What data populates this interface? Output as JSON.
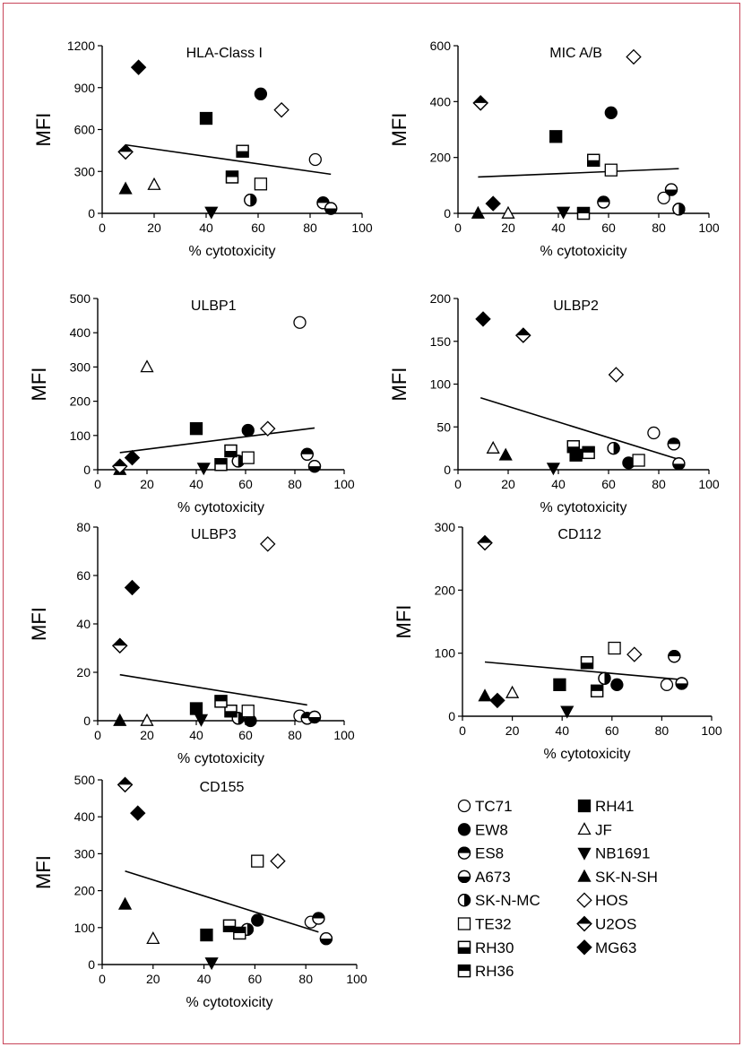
{
  "legend": [
    {
      "name": "TC71",
      "marker": "circle",
      "fill": "open"
    },
    {
      "name": "EW8",
      "marker": "circle",
      "fill": "full"
    },
    {
      "name": "ES8",
      "marker": "circle",
      "fill": "top"
    },
    {
      "name": "A673",
      "marker": "circle",
      "fill": "bottom"
    },
    {
      "name": "SK-N-MC",
      "marker": "circle",
      "fill": "right"
    },
    {
      "name": "TE32",
      "marker": "square",
      "fill": "open"
    },
    {
      "name": "RH30",
      "marker": "square",
      "fill": "bottom"
    },
    {
      "name": "RH36",
      "marker": "square",
      "fill": "top"
    },
    {
      "name": "RH41",
      "marker": "square",
      "fill": "full"
    },
    {
      "name": "JF",
      "marker": "triangle",
      "fill": "open"
    },
    {
      "name": "NB1691",
      "marker": "triangle-down",
      "fill": "full"
    },
    {
      "name": "SK-N-SH",
      "marker": "triangle",
      "fill": "full"
    },
    {
      "name": "HOS",
      "marker": "diamond",
      "fill": "open"
    },
    {
      "name": "U2OS",
      "marker": "diamond",
      "fill": "top"
    },
    {
      "name": "MG63",
      "marker": "diamond",
      "fill": "full"
    }
  ],
  "chart_data": [
    {
      "type": "scatter",
      "title": "HLA-Class I",
      "xlabel": "% cytotoxicity",
      "ylabel": "MFI",
      "xlim": [
        0,
        100
      ],
      "ylim": [
        0,
        1200
      ],
      "xticks": [
        "0",
        "20",
        "40",
        "60",
        "80",
        "100"
      ],
      "yticks": [
        "0",
        "300",
        "600",
        "900",
        "1200"
      ],
      "trendline": [
        [
          9,
          490
        ],
        [
          88,
          280
        ]
      ],
      "points": [
        {
          "series": "TC71",
          "x": 82,
          "y": 385
        },
        {
          "series": "EW8",
          "x": 61,
          "y": 855
        },
        {
          "series": "ES8",
          "x": 85,
          "y": 75
        },
        {
          "series": "A673",
          "x": 88,
          "y": 35
        },
        {
          "series": "SK-N-MC",
          "x": 57,
          "y": 95
        },
        {
          "series": "TE32",
          "x": 61,
          "y": 210
        },
        {
          "series": "RH30",
          "x": 54,
          "y": 445
        },
        {
          "series": "RH36",
          "x": 50,
          "y": 260
        },
        {
          "series": "RH41",
          "x": 40,
          "y": 680
        },
        {
          "series": "JF",
          "x": 20,
          "y": 205
        },
        {
          "series": "NB1691",
          "x": 42,
          "y": 10
        },
        {
          "series": "SK-N-SH",
          "x": 9,
          "y": 175
        },
        {
          "series": "HOS",
          "x": 69,
          "y": 740
        },
        {
          "series": "U2OS",
          "x": 9,
          "y": 440
        },
        {
          "series": "MG63",
          "x": 14,
          "y": 1045
        }
      ]
    },
    {
      "type": "scatter",
      "title": "MIC A/B",
      "xlabel": "% cytotoxicity",
      "ylabel": "MFI",
      "xlim": [
        0,
        100
      ],
      "ylim": [
        0,
        600
      ],
      "xticks": [
        "0",
        "20",
        "40",
        "60",
        "80",
        "100"
      ],
      "yticks": [
        "0",
        "200",
        "400",
        "600"
      ],
      "trendline": [
        [
          8,
          130
        ],
        [
          88,
          160
        ]
      ],
      "points": [
        {
          "series": "TC71",
          "x": 82,
          "y": 55
        },
        {
          "series": "EW8",
          "x": 61,
          "y": 360
        },
        {
          "series": "ES8",
          "x": 58,
          "y": 40
        },
        {
          "series": "A673",
          "x": 85,
          "y": 85
        },
        {
          "series": "SK-N-MC",
          "x": 88,
          "y": 15
        },
        {
          "series": "TE32",
          "x": 61,
          "y": 155
        },
        {
          "series": "RH30",
          "x": 54,
          "y": 190
        },
        {
          "series": "RH36",
          "x": 50,
          "y": 0
        },
        {
          "series": "RH41",
          "x": 39,
          "y": 275
        },
        {
          "series": "JF",
          "x": 20,
          "y": 0
        },
        {
          "series": "NB1691",
          "x": 42,
          "y": 5
        },
        {
          "series": "SK-N-SH",
          "x": 8,
          "y": 0
        },
        {
          "series": "HOS",
          "x": 70,
          "y": 560
        },
        {
          "series": "U2OS",
          "x": 9,
          "y": 395
        },
        {
          "series": "MG63",
          "x": 14,
          "y": 35
        }
      ]
    },
    {
      "type": "scatter",
      "title": "ULBP1",
      "xlabel": "% cytotoxicity",
      "ylabel": "MFI",
      "xlim": [
        0,
        100
      ],
      "ylim": [
        0,
        500
      ],
      "xticks": [
        "0",
        "20",
        "40",
        "60",
        "80",
        "100"
      ],
      "yticks": [
        "0",
        "100",
        "200",
        "300",
        "400",
        "500"
      ],
      "trendline": [
        [
          9,
          50
        ],
        [
          88,
          122
        ]
      ],
      "points": [
        {
          "series": "TC71",
          "x": 82,
          "y": 430
        },
        {
          "series": "EW8",
          "x": 61,
          "y": 115
        },
        {
          "series": "ES8",
          "x": 85,
          "y": 45
        },
        {
          "series": "A673",
          "x": 88,
          "y": 10
        },
        {
          "series": "SK-N-MC",
          "x": 57,
          "y": 25
        },
        {
          "series": "TE32",
          "x": 61,
          "y": 35
        },
        {
          "series": "RH30",
          "x": 54,
          "y": 55
        },
        {
          "series": "RH36",
          "x": 50,
          "y": 15
        },
        {
          "series": "RH41",
          "x": 40,
          "y": 120
        },
        {
          "series": "JF",
          "x": 20,
          "y": 300
        },
        {
          "series": "NB1691",
          "x": 43,
          "y": 5
        },
        {
          "series": "SK-N-SH",
          "x": 9,
          "y": 0
        },
        {
          "series": "HOS",
          "x": 69,
          "y": 120
        },
        {
          "series": "U2OS",
          "x": 9,
          "y": 10
        },
        {
          "series": "MG63",
          "x": 14,
          "y": 35
        }
      ]
    },
    {
      "type": "scatter",
      "title": "ULBP2",
      "xlabel": "% cytotoxicity",
      "ylabel": "MFI",
      "xlim": [
        0,
        100
      ],
      "ylim": [
        0,
        200
      ],
      "xticks": [
        "0",
        "20",
        "40",
        "60",
        "80",
        "100"
      ],
      "yticks": [
        "0",
        "50",
        "100",
        "150",
        "200"
      ],
      "trendline": [
        [
          9,
          84
        ],
        [
          88,
          12
        ]
      ],
      "points": [
        {
          "series": "TC71",
          "x": 78,
          "y": 43
        },
        {
          "series": "EW8",
          "x": 68,
          "y": 8
        },
        {
          "series": "ES8",
          "x": 86,
          "y": 30
        },
        {
          "series": "A673",
          "x": 88,
          "y": 7
        },
        {
          "series": "SK-N-MC",
          "x": 62,
          "y": 25
        },
        {
          "series": "TE32",
          "x": 72,
          "y": 11
        },
        {
          "series": "RH30",
          "x": 46,
          "y": 27
        },
        {
          "series": "RH36",
          "x": 52,
          "y": 20
        },
        {
          "series": "RH41",
          "x": 47,
          "y": 17
        },
        {
          "series": "JF",
          "x": 14,
          "y": 25
        },
        {
          "series": "NB1691",
          "x": 38,
          "y": 2
        },
        {
          "series": "SK-N-SH",
          "x": 19,
          "y": 17
        },
        {
          "series": "HOS",
          "x": 63,
          "y": 111
        },
        {
          "series": "U2OS",
          "x": 26,
          "y": 157
        },
        {
          "series": "MG63",
          "x": 10,
          "y": 176
        }
      ]
    },
    {
      "type": "scatter",
      "title": "ULBP3",
      "xlabel": "% cytotoxicity",
      "ylabel": "MFI",
      "xlim": [
        0,
        100
      ],
      "ylim": [
        0,
        80
      ],
      "xticks": [
        "0",
        "20",
        "40",
        "60",
        "80",
        "100"
      ],
      "yticks": [
        "0",
        "20",
        "40",
        "60",
        "80"
      ],
      "trendline": [
        [
          9,
          19
        ],
        [
          85,
          6.5
        ]
      ],
      "points": [
        {
          "series": "TC71",
          "x": 82,
          "y": 2
        },
        {
          "series": "EW8",
          "x": 62,
          "y": 0
        },
        {
          "series": "ES8",
          "x": 85,
          "y": 1
        },
        {
          "series": "A673",
          "x": 88,
          "y": 1.5
        },
        {
          "series": "SK-N-MC",
          "x": 57,
          "y": 1
        },
        {
          "series": "TE32",
          "x": 61,
          "y": 4
        },
        {
          "series": "RH30",
          "x": 54,
          "y": 4
        },
        {
          "series": "RH36",
          "x": 50,
          "y": 8
        },
        {
          "series": "RH41",
          "x": 40,
          "y": 5
        },
        {
          "series": "JF",
          "x": 20,
          "y": 0
        },
        {
          "series": "NB1691",
          "x": 42,
          "y": 0.5
        },
        {
          "series": "SK-N-SH",
          "x": 9,
          "y": 0
        },
        {
          "series": "HOS",
          "x": 69,
          "y": 73
        },
        {
          "series": "U2OS",
          "x": 9,
          "y": 31
        },
        {
          "series": "MG63",
          "x": 14,
          "y": 55
        }
      ]
    },
    {
      "type": "scatter",
      "title": "CD112",
      "xlabel": "% cytotoxicity",
      "ylabel": "MFI",
      "xlim": [
        0,
        100
      ],
      "ylim": [
        0,
        300
      ],
      "xticks": [
        "0",
        "20",
        "40",
        "60",
        "80",
        "100"
      ],
      "yticks": [
        "0",
        "100",
        "200",
        "300"
      ],
      "trendline": [
        [
          9,
          86
        ],
        [
          88,
          58
        ]
      ],
      "points": [
        {
          "series": "TC71",
          "x": 82,
          "y": 50
        },
        {
          "series": "EW8",
          "x": 62,
          "y": 50
        },
        {
          "series": "ES8",
          "x": 85,
          "y": 95
        },
        {
          "series": "A673",
          "x": 88,
          "y": 52
        },
        {
          "series": "SK-N-MC",
          "x": 57,
          "y": 60
        },
        {
          "series": "TE32",
          "x": 61,
          "y": 108
        },
        {
          "series": "RH30",
          "x": 50,
          "y": 85
        },
        {
          "series": "RH36",
          "x": 54,
          "y": 40
        },
        {
          "series": "RH41",
          "x": 39,
          "y": 50
        },
        {
          "series": "JF",
          "x": 20,
          "y": 37
        },
        {
          "series": "NB1691",
          "x": 42,
          "y": 8
        },
        {
          "series": "SK-N-SH",
          "x": 9,
          "y": 32
        },
        {
          "series": "HOS",
          "x": 69,
          "y": 98
        },
        {
          "series": "U2OS",
          "x": 9,
          "y": 275
        },
        {
          "series": "MG63",
          "x": 14,
          "y": 25
        }
      ]
    },
    {
      "type": "scatter",
      "title": "CD155",
      "xlabel": "% cytotoxicity",
      "ylabel": "MFI",
      "xlim": [
        0,
        100
      ],
      "ylim": [
        0,
        500
      ],
      "xticks": [
        "0",
        "20",
        "40",
        "60",
        "80",
        "100"
      ],
      "yticks": [
        "0",
        "100",
        "200",
        "300",
        "400",
        "500"
      ],
      "trendline": [
        [
          9,
          253
        ],
        [
          85,
          88
        ]
      ],
      "points": [
        {
          "series": "TC71",
          "x": 82,
          "y": 115
        },
        {
          "series": "EW8",
          "x": 61,
          "y": 120
        },
        {
          "series": "ES8",
          "x": 85,
          "y": 125
        },
        {
          "series": "A673",
          "x": 88,
          "y": 70
        },
        {
          "series": "SK-N-MC",
          "x": 57,
          "y": 95
        },
        {
          "series": "TE32",
          "x": 61,
          "y": 280
        },
        {
          "series": "RH30",
          "x": 50,
          "y": 105
        },
        {
          "series": "RH36",
          "x": 54,
          "y": 85
        },
        {
          "series": "RH41",
          "x": 41,
          "y": 80
        },
        {
          "series": "JF",
          "x": 20,
          "y": 70
        },
        {
          "series": "NB1691",
          "x": 43,
          "y": 5
        },
        {
          "series": "SK-N-SH",
          "x": 9,
          "y": 163
        },
        {
          "series": "HOS",
          "x": 69,
          "y": 280
        },
        {
          "series": "U2OS",
          "x": 9,
          "y": 487
        },
        {
          "series": "MG63",
          "x": 14,
          "y": 410
        }
      ]
    }
  ]
}
